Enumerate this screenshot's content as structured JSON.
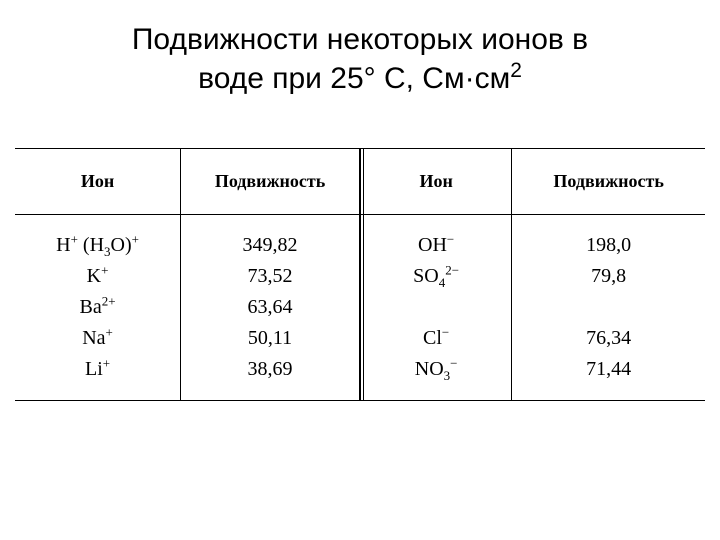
{
  "title_line1": "Подвижности некоторых ионов в",
  "title_line2_pre": "воде при 25° С, См·см",
  "title_sup": "2",
  "headers": {
    "ion1": "Ион",
    "mob1": "Подвижность",
    "ion2": "Ион",
    "mob2": "Подвижность"
  },
  "rows": [
    {
      "ion1_html": "H<sup>+</sup> (H<sub>3</sub>O)<sup>+</sup>",
      "mob1": "349,82",
      "ion2_html": "OH<sup>−</sup>",
      "mob2": "198,0"
    },
    {
      "ion1_html": "K<sup>+</sup>",
      "mob1": "73,52",
      "ion2_html": "SO<sub>4</sub><sup>2−</sup>",
      "mob2": "79,8"
    },
    {
      "ion1_html": "Ba<sup>2+</sup>",
      "mob1": "63,64",
      "ion2_html": "",
      "mob2": ""
    },
    {
      "ion1_html": "Na<sup>+</sup>",
      "mob1": "50,11",
      "ion2_html": "Cl<sup>−</sup>",
      "mob2": "76,34"
    },
    {
      "ion1_html": "Li<sup>+</sup>",
      "mob1": "38,69",
      "ion2_html": "NO<sub>3</sub><sup>−</sup>",
      "mob2": "71,44"
    }
  ],
  "colwidths": [
    "24%",
    "26%",
    "22%",
    "28%"
  ]
}
